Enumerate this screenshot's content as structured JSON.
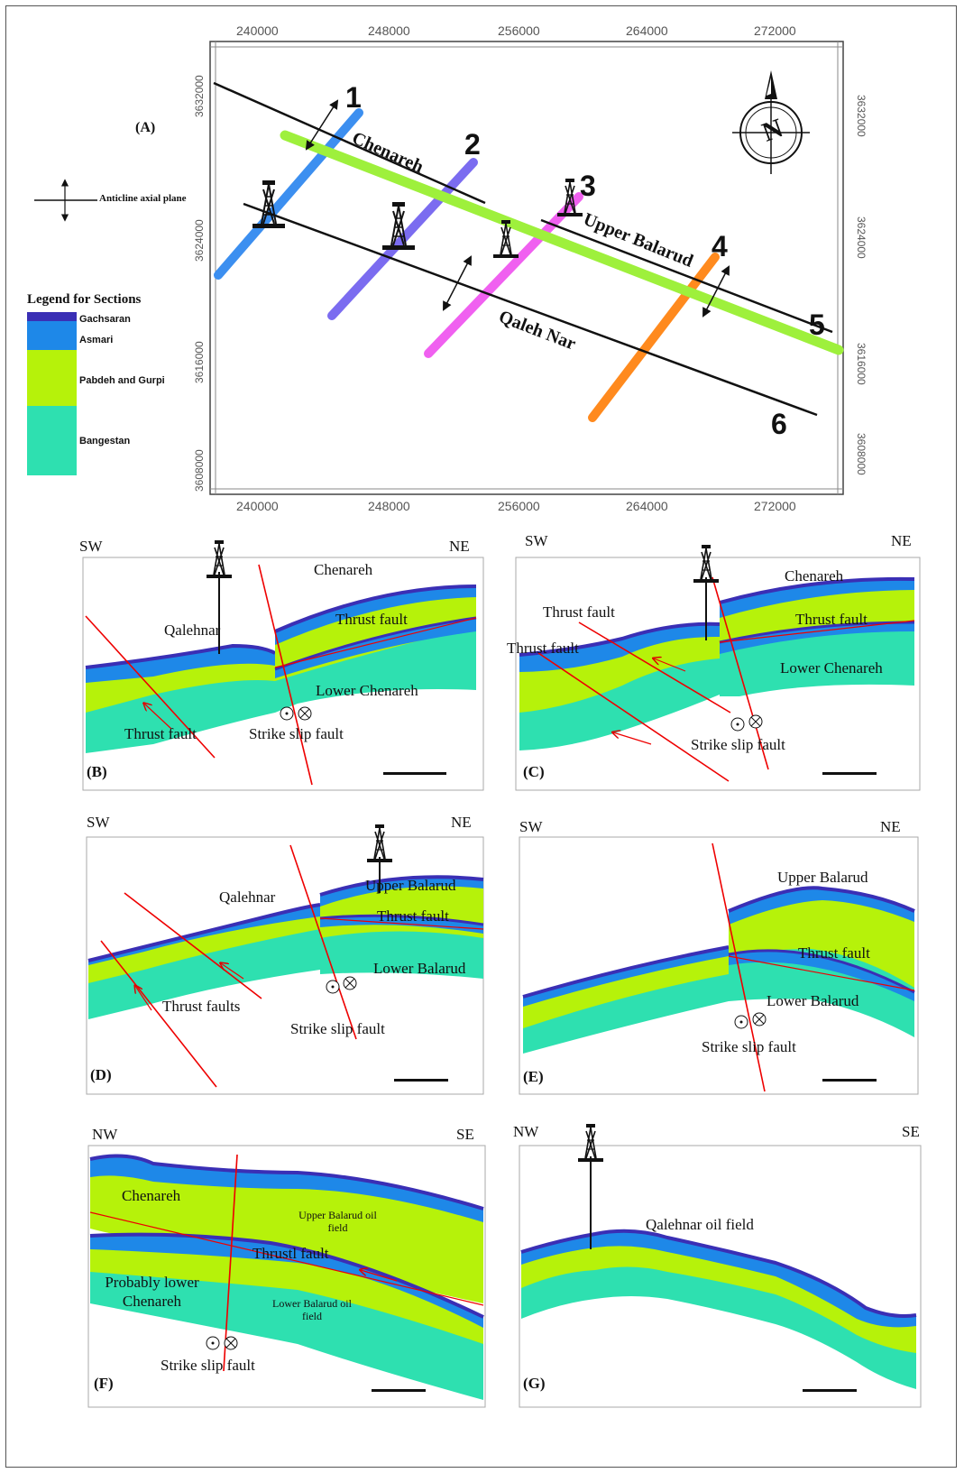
{
  "map": {
    "panel_label": "(A)",
    "x_ticks": [
      "240000",
      "248000",
      "256000",
      "264000",
      "272000"
    ],
    "y_ticks": [
      "3632000",
      "3624000",
      "3616000",
      "3608000"
    ],
    "north_letter": "N",
    "anticline_legend": "Anticline axial plane",
    "section_numbers": [
      "1",
      "2",
      "3",
      "4",
      "5",
      "6"
    ],
    "anticlines": [
      "Chenareh",
      "Upper Balarud",
      "Qaleh Nar"
    ],
    "legend_title": "Legend for Sections",
    "legend_items": [
      {
        "label": "Gachsaran",
        "color": "#3a2fb5"
      },
      {
        "label": "Asmari",
        "color": "#1e88e8"
      },
      {
        "label": "Pabdeh and Gurpi",
        "color": "#b6f20a"
      },
      {
        "label": "Bangestan",
        "color": "#2ee0b0"
      }
    ],
    "section_colors": {
      "s1": "#3c8ff0",
      "s2": "#7b6cf0",
      "s3": "#f060f0",
      "s4": "#ff8a1e",
      "s5": "#9ef03c"
    }
  },
  "sections": {
    "B": {
      "label": "(B)",
      "left": "SW",
      "right": "NE",
      "texts": [
        "Chenareh",
        "Qalehnar",
        "Thrust fault",
        "Lower Chenareh",
        "Thrust fault",
        "Strike slip fault"
      ]
    },
    "C": {
      "label": "(C)",
      "left": "SW",
      "right": "NE",
      "texts": [
        "Chenareh",
        "Thrust fault",
        "Thrust fault",
        "Thrust fault",
        "Lower Chenareh",
        "Strike slip fault"
      ]
    },
    "D": {
      "label": "(D)",
      "left": "SW",
      "right": "NE",
      "texts": [
        "Upper Balarud",
        "Qalehnar",
        "Thrust fault",
        "Lower Balarud",
        "Thrust faults",
        "Strike slip fault"
      ]
    },
    "E": {
      "label": "(E)",
      "left": "SW",
      "right": "NE",
      "texts": [
        "Upper Balarud",
        "Thrust fault",
        "Lower Balarud",
        "Strike slip fault"
      ]
    },
    "F": {
      "label": "(F)",
      "left": "NW",
      "right": "SE",
      "texts": [
        "Chenareh",
        "Upper Balarud oil field",
        "Thrustl fault",
        "Probably lower Chenareh",
        "Lower Balarud oil field",
        "Strike slip fault"
      ]
    },
    "G": {
      "label": "(G)",
      "left": "NW",
      "right": "SE",
      "texts": [
        "Qalehnar oil field"
      ]
    }
  }
}
